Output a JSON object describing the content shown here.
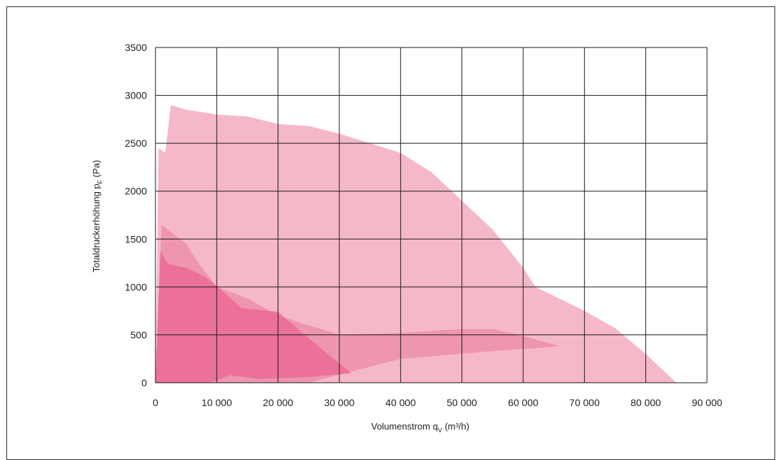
{
  "chart_data": {
    "type": "area",
    "xlabel": "Volumenstrom q",
    "xlabel_sub": "V",
    "xlabel_unit": " (m³/h)",
    "ylabel": "Totaldruckerhöhung p",
    "ylabel_sub": "F",
    "ylabel_unit": " (Pa)",
    "xlim": [
      0,
      90000
    ],
    "ylim": [
      0,
      3500
    ],
    "x_ticks": [
      0,
      10000,
      20000,
      30000,
      40000,
      50000,
      60000,
      70000,
      80000,
      90000
    ],
    "x_tick_labels": [
      "0",
      "10 000",
      "20 000",
      "30 000",
      "40 000",
      "50 000",
      "60 000",
      "70 000",
      "80 000",
      "90 000"
    ],
    "y_ticks": [
      0,
      500,
      1000,
      1500,
      2000,
      2500,
      3000,
      3500
    ],
    "y_tick_labels": [
      "0",
      "500",
      "1000",
      "1500",
      "2000",
      "2500",
      "3000",
      "3500"
    ],
    "grid": true,
    "series": [
      {
        "color": "#f5b8c8",
        "opacity": 1,
        "points": [
          [
            0,
            0
          ],
          [
            500,
            2450
          ],
          [
            1600,
            2400
          ],
          [
            2500,
            2900
          ],
          [
            5000,
            2850
          ],
          [
            10000,
            2800
          ],
          [
            15000,
            2780
          ],
          [
            20000,
            2700
          ],
          [
            25000,
            2680
          ],
          [
            30000,
            2600
          ],
          [
            35000,
            2500
          ],
          [
            40000,
            2400
          ],
          [
            45000,
            2200
          ],
          [
            50000,
            1900
          ],
          [
            55000,
            1600
          ],
          [
            60000,
            1200
          ],
          [
            62000,
            1000
          ],
          [
            70000,
            750
          ],
          [
            75000,
            570
          ],
          [
            80000,
            300
          ],
          [
            85000,
            0
          ]
        ]
      },
      {
        "color": "#ec88a6",
        "opacity": 0.72,
        "points": [
          [
            0,
            0
          ],
          [
            1000,
            1650
          ],
          [
            2000,
            1600
          ],
          [
            5000,
            1450
          ],
          [
            7000,
            1250
          ],
          [
            10000,
            1000
          ],
          [
            15000,
            880
          ],
          [
            20000,
            700
          ],
          [
            25000,
            600
          ],
          [
            30000,
            500
          ],
          [
            40000,
            520
          ],
          [
            50000,
            560
          ],
          [
            55000,
            560
          ],
          [
            60000,
            490
          ],
          [
            66000,
            380
          ],
          [
            55000,
            330
          ],
          [
            40000,
            250
          ],
          [
            25000,
            0
          ]
        ]
      },
      {
        "color": "#ea6490",
        "opacity": 0.72,
        "points": [
          [
            0,
            0
          ],
          [
            800,
            1380
          ],
          [
            2000,
            1240
          ],
          [
            5000,
            1200
          ],
          [
            8000,
            1110
          ],
          [
            10000,
            1010
          ],
          [
            14000,
            780
          ],
          [
            20000,
            740
          ],
          [
            24000,
            520
          ],
          [
            30000,
            200
          ],
          [
            32000,
            100
          ],
          [
            25000,
            60
          ],
          [
            17000,
            40
          ],
          [
            12000,
            80
          ],
          [
            10000,
            20
          ],
          [
            8000,
            0
          ]
        ]
      }
    ]
  }
}
